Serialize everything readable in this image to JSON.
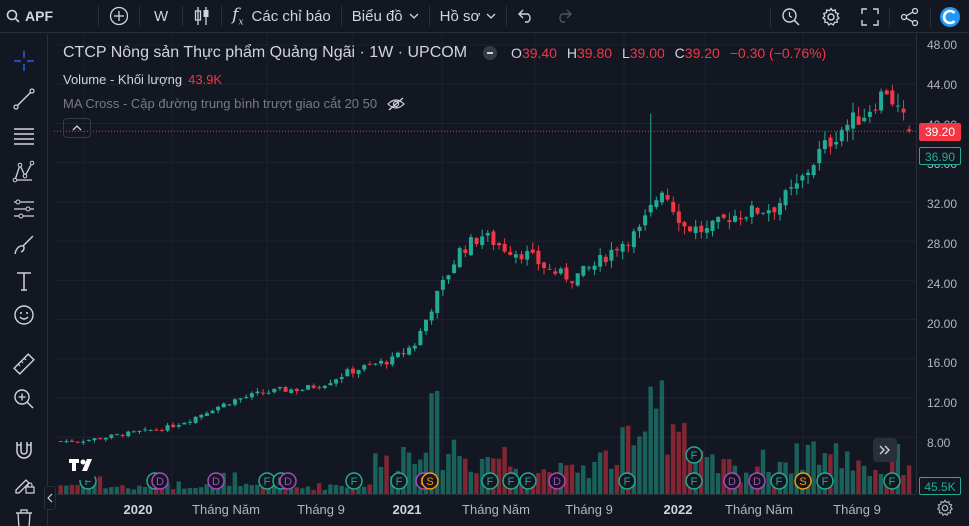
{
  "toolbar": {
    "symbol": "APF",
    "interval": "W",
    "indicators_label": "Các chỉ báo",
    "chart_label": "Biểu đồ",
    "profile_label": "Hồ sơ"
  },
  "legend": {
    "title": "CTCP Nông sản Thực phẩm Quảng Ngãi · 1W · UPCOM",
    "o_label": "O",
    "o": "39.40",
    "h_label": "H",
    "h": "39.80",
    "l_label": "L",
    "l": "39.00",
    "c_label": "C",
    "c": "39.20",
    "change": "−0.30 (−0.76%)",
    "volume_label": "Volume - Khối lượng",
    "volume_value": "43.9K",
    "ma_label": "MA Cross - Cập đường trung bình trượt giao cắt 20 50"
  },
  "price_scale": {
    "ticks": [
      "48.00",
      "44.00",
      "40.00",
      "36.00",
      "32.00",
      "28.00",
      "24.00",
      "20.00",
      "16.00",
      "12.00",
      "8.00"
    ],
    "last_price": "39.20",
    "ma_price": "36.90",
    "volume_tag": "45.5K"
  },
  "time_scale": {
    "labels": [
      "2020",
      "Tháng Năm",
      "Tháng 9",
      "2021",
      "Tháng Năm",
      "Tháng 9",
      "2022",
      "Tháng Năm",
      "Tháng 9"
    ]
  },
  "events": [
    "F",
    "F",
    "D",
    "D",
    "F",
    "F",
    "D",
    "F",
    "F",
    "D",
    "S",
    "F",
    "F",
    "F",
    "D",
    "F",
    "F",
    "D",
    "D",
    "F",
    "S",
    "F",
    "F",
    "F"
  ],
  "colors": {
    "up": "#22ab94",
    "down": "#f23645",
    "bg": "#131722"
  },
  "chart_data": {
    "type": "candlestick",
    "title": "CTCP Nông sản Thực phẩm Quảng Ngãi · 1W · UPCOM",
    "ylim": [
      7,
      48
    ],
    "x": [
      "2019-10",
      "2019-11",
      "2019-12",
      "2020-01",
      "2020-02",
      "2020-03",
      "2020-04",
      "2020-05",
      "2020-06",
      "2020-07",
      "2020-08",
      "2020-09",
      "2020-10",
      "2020-11",
      "2020-12",
      "2021-01",
      "2021-02",
      "2021-03",
      "2021-04",
      "2021-05",
      "2021-06",
      "2021-07",
      "2021-08",
      "2021-09",
      "2021-10",
      "2021-11",
      "2021-12",
      "2022-01",
      "2022-02",
      "2022-03",
      "2022-04",
      "2022-05",
      "2022-06",
      "2022-07",
      "2022-08",
      "2022-09",
      "2022-10",
      "2022-11"
    ],
    "close": [
      7.6,
      7.9,
      8.3,
      8.6,
      9.0,
      9.8,
      10.9,
      11.8,
      12.4,
      12.8,
      12.9,
      13.5,
      14.6,
      15.3,
      15.9,
      17.5,
      22.5,
      27.0,
      28.6,
      27.3,
      26.6,
      25.0,
      24.2,
      25.5,
      27.5,
      29.0,
      33.5,
      29.5,
      29.0,
      30.5,
      31.0,
      31.5,
      33.5,
      37.0,
      39.5,
      41.0,
      43.5,
      39.2
    ],
    "volume_k": [
      12,
      18,
      10,
      8,
      15,
      12,
      14,
      20,
      9,
      11,
      8,
      10,
      12,
      15,
      40,
      55,
      90,
      60,
      45,
      50,
      40,
      30,
      28,
      35,
      45,
      60,
      150,
      90,
      40,
      35,
      30,
      40,
      45,
      60,
      50,
      45,
      30,
      44
    ]
  }
}
